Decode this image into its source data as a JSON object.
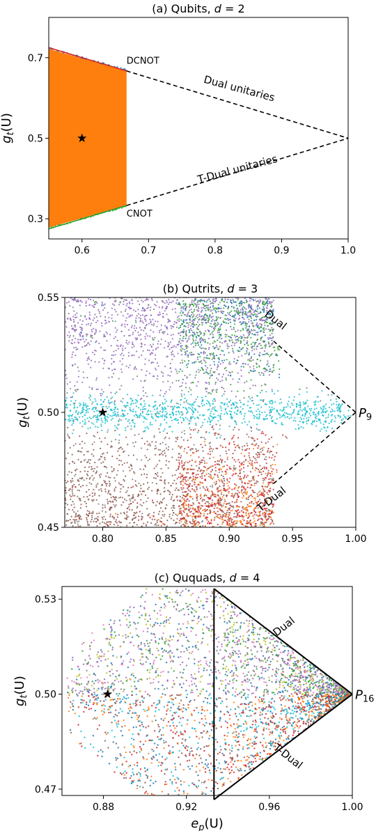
{
  "chart_data": [
    {
      "type": "scatter",
      "title": "(a) Qubits, d = 2",
      "title_parts": {
        "prefix": "(a) Qubits, ",
        "var": "d",
        "suffix": " = 2"
      },
      "ylabel_parts": {
        "main": "g",
        "sub": "t",
        "tail": "(U)"
      },
      "xlim": [
        0.55,
        1.0
      ],
      "ylim": [
        0.25,
        0.8
      ],
      "xticks": [
        {
          "value": 0.6,
          "label": "0.6"
        },
        {
          "value": 0.7,
          "label": "0.7"
        },
        {
          "value": 0.8,
          "label": "0.8"
        },
        {
          "value": 0.9,
          "label": "0.9"
        },
        {
          "value": 1.0,
          "label": "1.0"
        }
      ],
      "yticks": [
        {
          "value": 0.3,
          "label": "0.3"
        },
        {
          "value": 0.5,
          "label": "0.5"
        },
        {
          "value": 0.7,
          "label": "0.7"
        }
      ],
      "region": {
        "x_max": 0.667,
        "y_top_at_xmin": 0.722,
        "y_top_at_xmax": 0.667,
        "y_bot_at_xmin": 0.278,
        "y_bot_at_xmax": 0.333
      },
      "star": {
        "x": 0.6,
        "y": 0.5
      },
      "boundary_lines": [
        {
          "name": "Dual unitaries",
          "points": [
            [
              0.667,
              0.667
            ],
            [
              1.0,
              0.5
            ]
          ],
          "style": "dashed"
        },
        {
          "name": "T-Dual unitaries",
          "points": [
            [
              0.667,
              0.333
            ],
            [
              1.0,
              0.5
            ]
          ],
          "style": "dashed"
        }
      ],
      "edges": [
        {
          "points": [
            [
              0.55,
              0.725
            ],
            [
              0.667,
              0.667
            ]
          ],
          "color": "#d62728"
        },
        {
          "points": [
            [
              0.55,
              0.275
            ],
            [
              0.667,
              0.333
            ]
          ],
          "color": "#2ca02c"
        }
      ],
      "annotations": [
        {
          "text": "DCNOT",
          "x": 0.667,
          "y": 0.685,
          "size": 13,
          "anchor": "start",
          "rotate": 0
        },
        {
          "text": "CNOT",
          "x": 0.667,
          "y": 0.305,
          "size": 13,
          "anchor": "start",
          "rotate": 0
        },
        {
          "text": "Dual unitaries",
          "x": 0.835,
          "y": 0.615,
          "size": 15,
          "anchor": "middle",
          "rotate": 15
        },
        {
          "text": "T-Dual unitaries",
          "x": 0.835,
          "y": 0.415,
          "size": 15,
          "anchor": "middle",
          "rotate": -15
        }
      ],
      "colors": [
        "#ff7f0e"
      ]
    },
    {
      "type": "scatter",
      "title": "(b) Qutrits, d = 3",
      "title_parts": {
        "prefix": "(b) Qutrits, ",
        "var": "d",
        "suffix": " = 3"
      },
      "ylabel_parts": {
        "main": "g",
        "sub": "t",
        "tail": "(U)"
      },
      "xlim": [
        0.77,
        1.0
      ],
      "ylim": [
        0.45,
        0.55
      ],
      "xticks": [
        {
          "value": 0.8,
          "label": "0.80"
        },
        {
          "value": 0.85,
          "label": "0.85"
        },
        {
          "value": 0.9,
          "label": "0.90"
        },
        {
          "value": 0.95,
          "label": "0.95"
        },
        {
          "value": 1.0,
          "label": "1.00"
        }
      ],
      "yticks": [
        {
          "value": 0.45,
          "label": "0.45"
        },
        {
          "value": 0.5,
          "label": "0.50"
        },
        {
          "value": 0.55,
          "label": "0.55"
        }
      ],
      "star": {
        "x": 0.8,
        "y": 0.5
      },
      "point_label": {
        "main": "P",
        "sub": "9",
        "x": 1.0,
        "y": 0.5
      },
      "boundary_lines": [
        {
          "name": "Dual",
          "points": [
            [
              0.935,
              0.531
            ],
            [
              1.0,
              0.5
            ]
          ],
          "style": "dashed"
        },
        {
          "name": "T-Dual",
          "points": [
            [
              0.935,
              0.469
            ],
            [
              1.0,
              0.5
            ]
          ],
          "style": "dashed"
        }
      ],
      "annotations": [
        {
          "text": "Dual",
          "x": 0.935,
          "y": 0.539,
          "size": 15,
          "anchor": "middle",
          "rotate": 38
        },
        {
          "text": "T-Dual",
          "x": 0.935,
          "y": 0.461,
          "size": 15,
          "anchor": "middle",
          "rotate": -38
        }
      ],
      "colors": [
        "#9467bd",
        "#1f77b4",
        "#2ca02c",
        "#17becf",
        "#8c564b",
        "#d62728",
        "#ff7f0e",
        "#e377c2",
        "#7f7f7f"
      ]
    },
    {
      "type": "scatter",
      "title": "(c) Ququads, d = 4",
      "title_parts": {
        "prefix": "(c) Ququads, ",
        "var": "d",
        "suffix": " = 4"
      },
      "ylabel_parts": {
        "main": "g",
        "sub": "t",
        "tail": "(U)"
      },
      "xlabel_parts": {
        "main": "e",
        "sub": "p",
        "tail": "(U)"
      },
      "xlim": [
        0.86,
        1.0
      ],
      "ylim": [
        0.468,
        0.534
      ],
      "xticks": [
        {
          "value": 0.88,
          "label": "0.88"
        },
        {
          "value": 0.92,
          "label": "0.92"
        },
        {
          "value": 0.96,
          "label": "0.96"
        },
        {
          "value": 1.0,
          "label": "1.00"
        }
      ],
      "yticks": [
        {
          "value": 0.47,
          "label": "0.47"
        },
        {
          "value": 0.5,
          "label": "0.50"
        },
        {
          "value": 0.53,
          "label": "0.53"
        }
      ],
      "star": {
        "x": 0.882,
        "y": 0.5
      },
      "point_label": {
        "main": "P",
        "sub": "16",
        "x": 1.0,
        "y": 0.5
      },
      "boundary_lines": [
        {
          "name": "Dual",
          "points": [
            [
              0.9333,
              0.5333
            ],
            [
              1.0,
              0.5
            ]
          ],
          "style": "solid"
        },
        {
          "name": "T-Dual",
          "points": [
            [
              0.9333,
              0.4667
            ],
            [
              1.0,
              0.5
            ]
          ],
          "style": "solid"
        },
        {
          "name": "",
          "points": [
            [
              0.9333,
              0.4667
            ],
            [
              0.9333,
              0.5333
            ]
          ],
          "style": "solid"
        }
      ],
      "annotations": [
        {
          "text": "Dual",
          "x": 0.968,
          "y": 0.5205,
          "size": 15,
          "anchor": "middle",
          "rotate": -38
        },
        {
          "text": "T-Dual",
          "x": 0.968,
          "y": 0.4795,
          "size": 15,
          "anchor": "middle",
          "rotate": 38
        }
      ],
      "colors": [
        "#1f77b4",
        "#ff7f0e",
        "#2ca02c",
        "#d62728",
        "#9467bd",
        "#8c564b",
        "#e377c2",
        "#7f7f7f",
        "#bcbd22",
        "#17becf"
      ]
    }
  ]
}
